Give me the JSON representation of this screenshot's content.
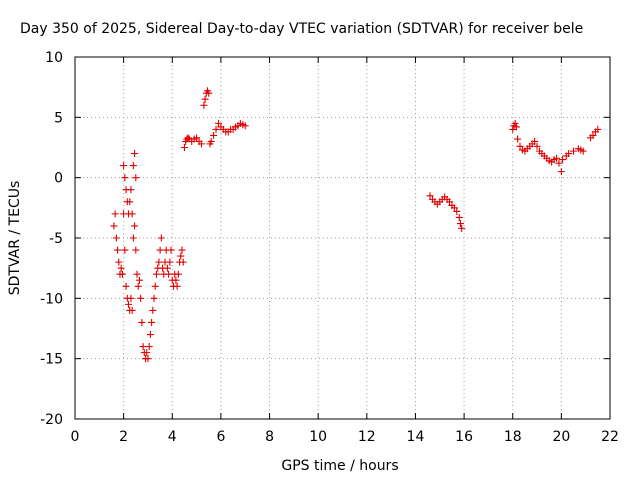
{
  "chart_data": {
    "type": "scatter",
    "title": "Day 350 of 2025, Sidereal Day-to-day VTEC variation (SDTVAR) for receiver bele",
    "xlabel": "GPS time / hours",
    "ylabel": "SDTVAR / TECUs",
    "xlim": [
      0,
      22
    ],
    "ylim": [
      -20,
      10
    ],
    "xticks": [
      0,
      2,
      4,
      6,
      8,
      10,
      12,
      14,
      16,
      18,
      20,
      22
    ],
    "yticks": [
      -20,
      -15,
      -10,
      -5,
      0,
      5,
      10
    ],
    "grid": true,
    "marker": "+",
    "marker_color": "#e00000",
    "series": [
      {
        "name": "SDTVAR",
        "x": [
          1.6,
          1.65,
          1.7,
          1.75,
          1.8,
          1.85,
          1.9,
          1.95,
          2.0,
          2.0,
          2.05,
          2.05,
          2.1,
          2.1,
          2.15,
          2.15,
          2.2,
          2.2,
          2.25,
          2.25,
          2.3,
          2.3,
          2.35,
          2.35,
          2.4,
          2.4,
          2.45,
          2.45,
          2.5,
          2.5,
          2.55,
          2.6,
          2.65,
          2.7,
          2.75,
          2.8,
          2.85,
          2.9,
          2.95,
          3.0,
          3.05,
          3.1,
          3.15,
          3.2,
          3.25,
          3.3,
          3.35,
          3.4,
          3.45,
          3.5,
          3.55,
          3.6,
          3.65,
          3.7,
          3.75,
          3.8,
          3.85,
          3.9,
          3.95,
          4.0,
          4.05,
          4.1,
          4.15,
          4.2,
          4.25,
          4.3,
          4.35,
          4.4,
          4.45,
          4.5,
          4.55,
          4.6,
          4.65,
          4.7,
          4.8,
          4.9,
          5.0,
          5.1,
          5.2,
          5.3,
          5.35,
          5.4,
          5.45,
          5.5,
          5.55,
          5.6,
          5.7,
          5.8,
          5.9,
          6.0,
          6.1,
          6.2,
          6.3,
          6.4,
          6.5,
          6.6,
          6.7,
          6.8,
          6.9,
          7.0,
          14.6,
          14.7,
          14.8,
          14.9,
          15.0,
          15.1,
          15.2,
          15.3,
          15.4,
          15.5,
          15.6,
          15.7,
          15.8,
          15.85,
          15.9,
          18.0,
          18.05,
          18.1,
          18.15,
          18.2,
          18.3,
          18.4,
          18.5,
          18.6,
          18.7,
          18.8,
          18.9,
          19.0,
          19.1,
          19.2,
          19.3,
          19.4,
          19.5,
          19.6,
          19.7,
          19.8,
          19.9,
          20.0,
          20.05,
          20.2,
          20.3,
          20.5,
          20.7,
          20.8,
          20.9,
          21.2,
          21.3,
          21.4,
          21.5
        ],
        "y": [
          -4,
          -3,
          -5,
          -6,
          -7,
          -8,
          -7.5,
          -8,
          -3,
          1,
          -6,
          0,
          -9,
          -1,
          -10,
          -2,
          -10.5,
          -3,
          -11,
          -2,
          -10,
          -1,
          -11,
          -3,
          -5,
          1,
          -4,
          2,
          -6,
          0,
          -8,
          -9,
          -8.5,
          -10,
          -12,
          -14,
          -14.5,
          -15,
          -14.5,
          -15,
          -14,
          -13,
          -12,
          -11,
          -10,
          -9,
          -8,
          -7.5,
          -7,
          -6,
          -5,
          -7.5,
          -8,
          -7,
          -6,
          -7.5,
          -8,
          -7,
          -6,
          -8.5,
          -9,
          -8,
          -8.5,
          -9,
          -8,
          -7,
          -6.5,
          -6,
          -7,
          2.5,
          3,
          3.2,
          3.3,
          3.2,
          3.0,
          3.2,
          3.3,
          3.0,
          2.8,
          6.0,
          6.5,
          7.0,
          7.2,
          7.0,
          2.8,
          3.0,
          3.5,
          4.0,
          4.5,
          4.2,
          4.0,
          3.8,
          3.8,
          4.0,
          4.0,
          4.2,
          4.3,
          4.5,
          4.4,
          4.3,
          -1.5,
          -1.8,
          -2.0,
          -2.2,
          -2.0,
          -1.8,
          -1.6,
          -1.8,
          -2.0,
          -2.3,
          -2.5,
          -2.8,
          -3.3,
          -3.8,
          -4.2,
          4.0,
          4.3,
          4.5,
          4.2,
          3.2,
          2.6,
          2.3,
          2.2,
          2.4,
          2.6,
          2.8,
          3.0,
          2.6,
          2.2,
          2.0,
          1.8,
          1.6,
          1.4,
          1.3,
          1.5,
          1.6,
          1.2,
          0.5,
          1.5,
          1.8,
          2.0,
          2.2,
          2.4,
          2.3,
          2.2,
          3.3,
          3.5,
          3.8,
          4.0
        ]
      }
    ]
  }
}
